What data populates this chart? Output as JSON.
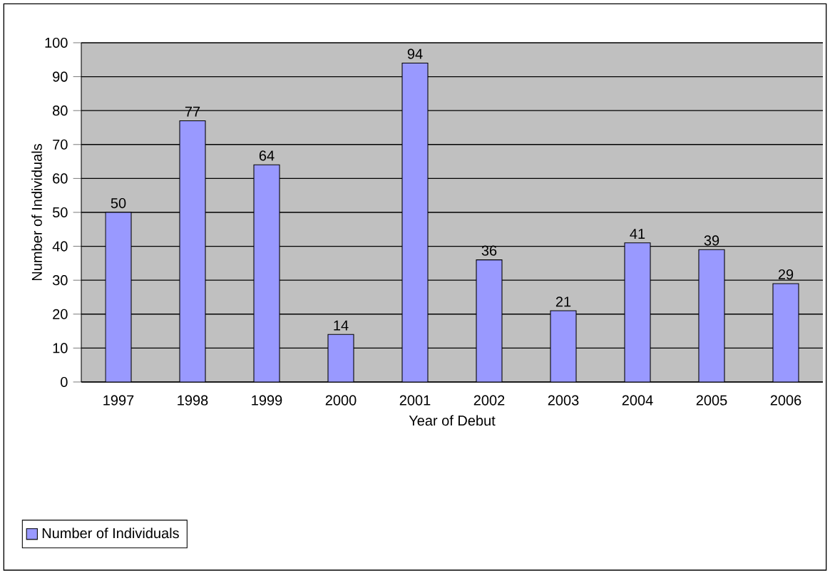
{
  "chart_data": {
    "type": "bar",
    "xlabel": "Year of Debut",
    "ylabel": "Number of Individuals",
    "categories": [
      "1997",
      "1998",
      "1999",
      "2000",
      "2001",
      "2002",
      "2003",
      "2004",
      "2005",
      "2006"
    ],
    "series": [
      {
        "name": "Number of Individuals",
        "color": "#9999ff",
        "values": [
          50,
          77,
          64,
          14,
          94,
          36,
          21,
          41,
          39,
          29
        ]
      }
    ],
    "ylim": [
      0,
      100
    ],
    "yticks": [
      0,
      10,
      20,
      30,
      40,
      50,
      60,
      70,
      80,
      90,
      100
    ],
    "grid": "y",
    "legend": "bottom left",
    "data_labels": true
  }
}
